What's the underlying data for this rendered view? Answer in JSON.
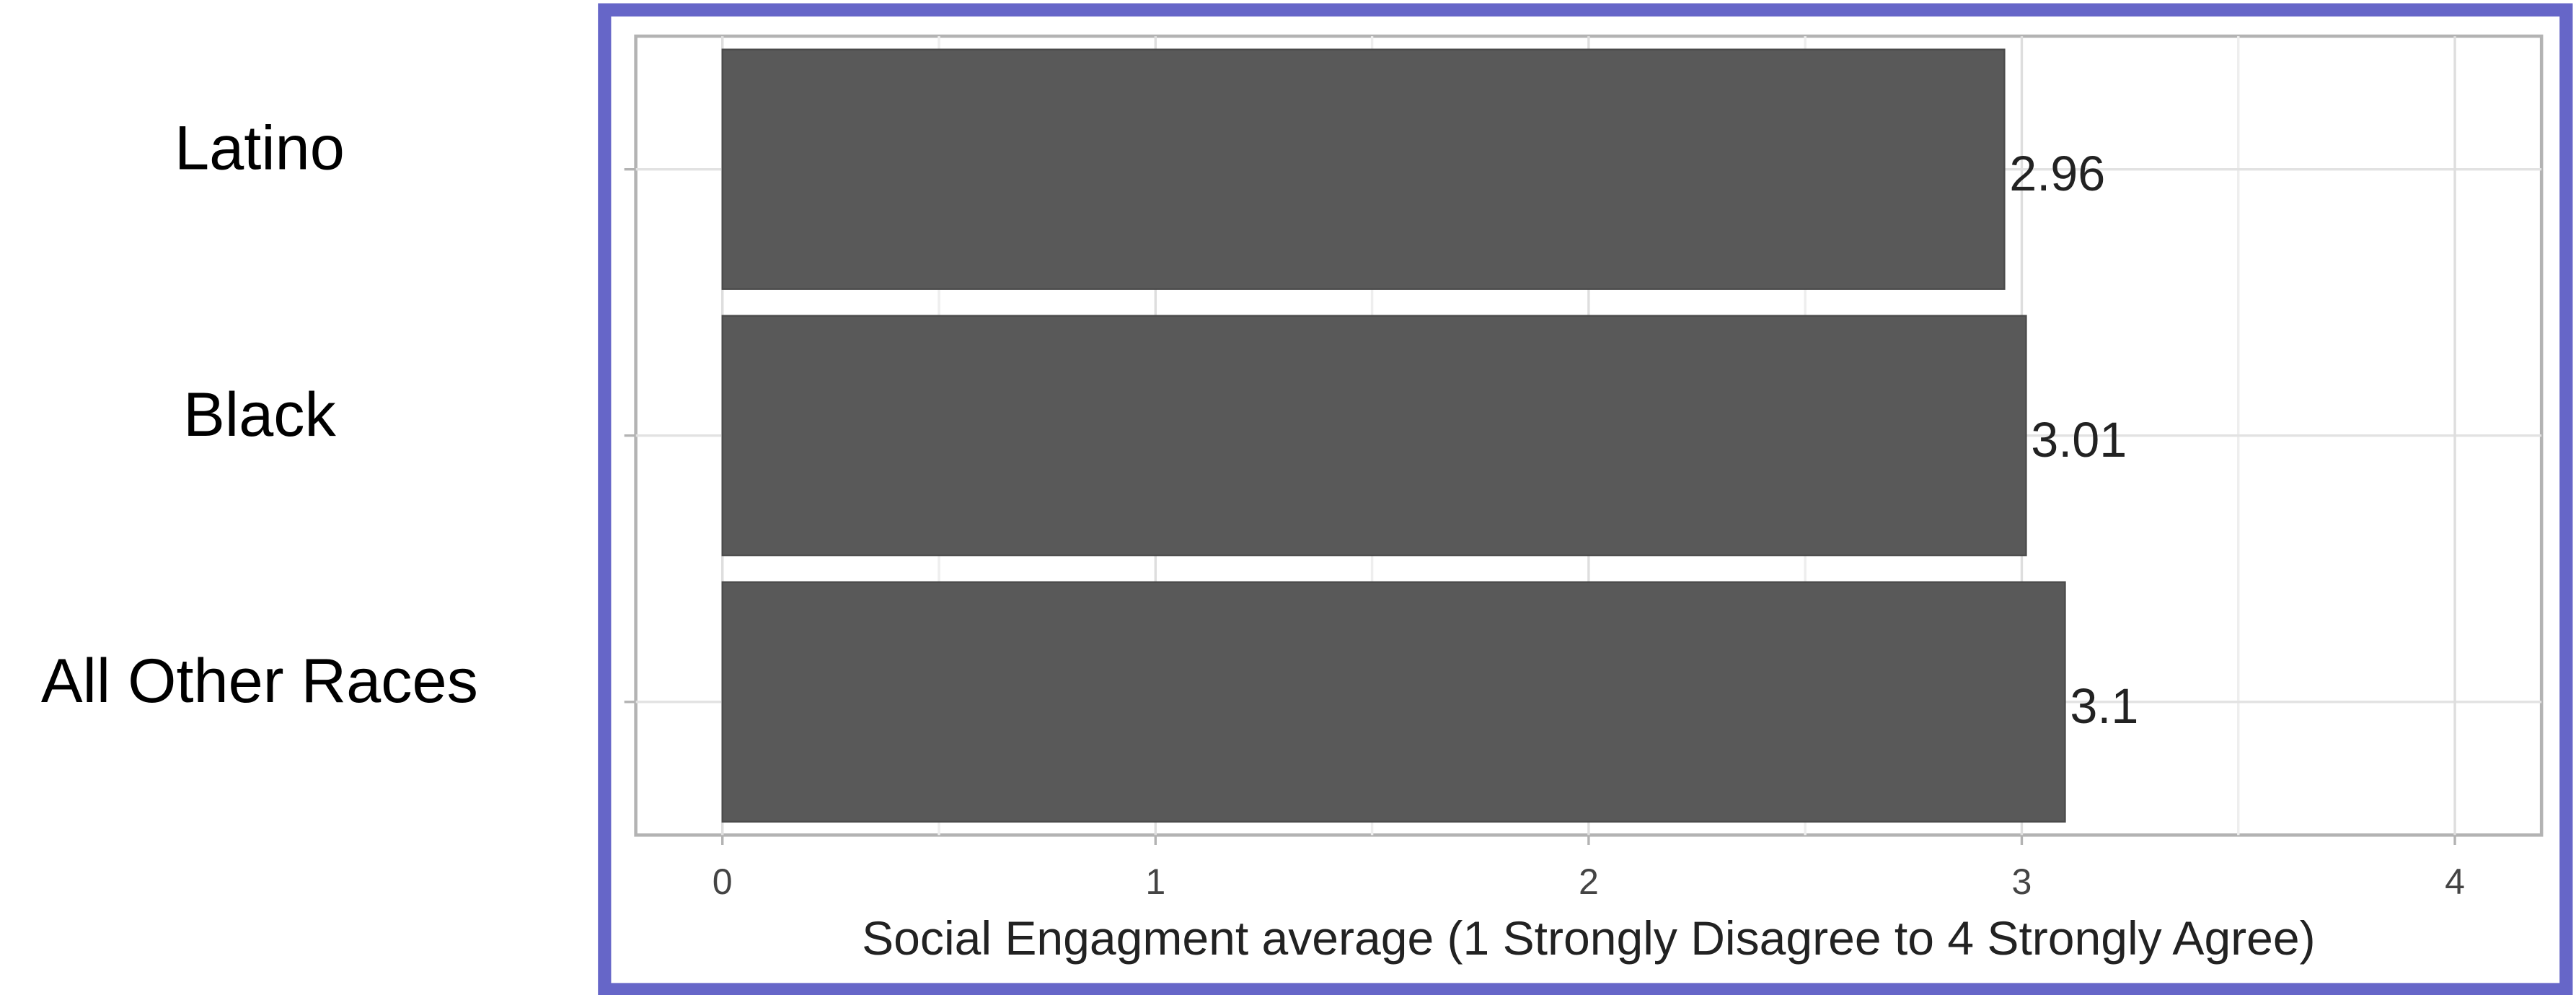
{
  "chart_data": {
    "type": "bar",
    "orientation": "horizontal",
    "categories": [
      "Latino",
      "Black",
      "All Other Races"
    ],
    "values": [
      2.96,
      3.01,
      3.1
    ],
    "color": "#595959",
    "xlabel": "Social Engagment average (1 Strongly Disagree to 4 Strongly Agree)",
    "xlim": [
      -0.2,
      4.2
    ],
    "xticks": [
      0,
      1,
      2,
      3,
      4
    ],
    "grid": true
  }
}
